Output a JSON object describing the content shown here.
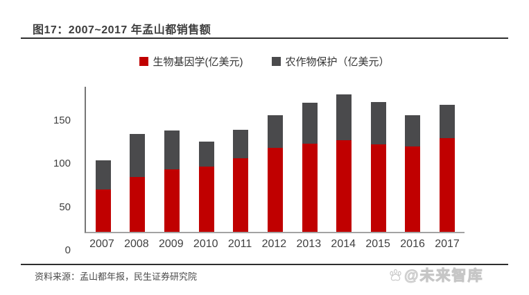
{
  "header": {
    "title": "图17：2007~2017 年孟山都销售额"
  },
  "chart_data": {
    "type": "bar",
    "stacked": true,
    "title": "2007~2017 年孟山都销售额",
    "categories": [
      "2007",
      "2008",
      "2009",
      "2010",
      "2011",
      "2012",
      "2013",
      "2014",
      "2015",
      "2016",
      "2017"
    ],
    "series": [
      {
        "name": "生物基因学(亿美元)",
        "color": "#c00000",
        "values": [
          49,
          63,
          72,
          75,
          85,
          97,
          102,
          106,
          101,
          99,
          108
        ]
      },
      {
        "name": "农作物保护（亿美元）",
        "color": "#4a4a4c",
        "values": [
          34,
          50,
          45,
          29,
          33,
          38,
          47,
          53,
          49,
          36,
          39
        ]
      }
    ],
    "totals": [
      83,
      113,
      117,
      104,
      118,
      135,
      149,
      159,
      150,
      135,
      147
    ],
    "xlabel": "",
    "ylabel": "",
    "ylim": [
      0,
      165
    ],
    "yticks": [
      0,
      50,
      100,
      150
    ],
    "grid": false,
    "legend_position": "top-center"
  },
  "footer": {
    "source": "资料来源：孟山都年报，民生证券研究院",
    "watermark": "@未来智库",
    "watermark_icon": "paw-icon"
  },
  "colors": {
    "bio_red": "#c00000",
    "crop_gray": "#4a4a4c",
    "rule_dark": "#2e2e2e",
    "axis_gray": "#a3a3a3",
    "text_dark": "#3d3d3d",
    "watermark_gray": "#c6c6c6"
  }
}
